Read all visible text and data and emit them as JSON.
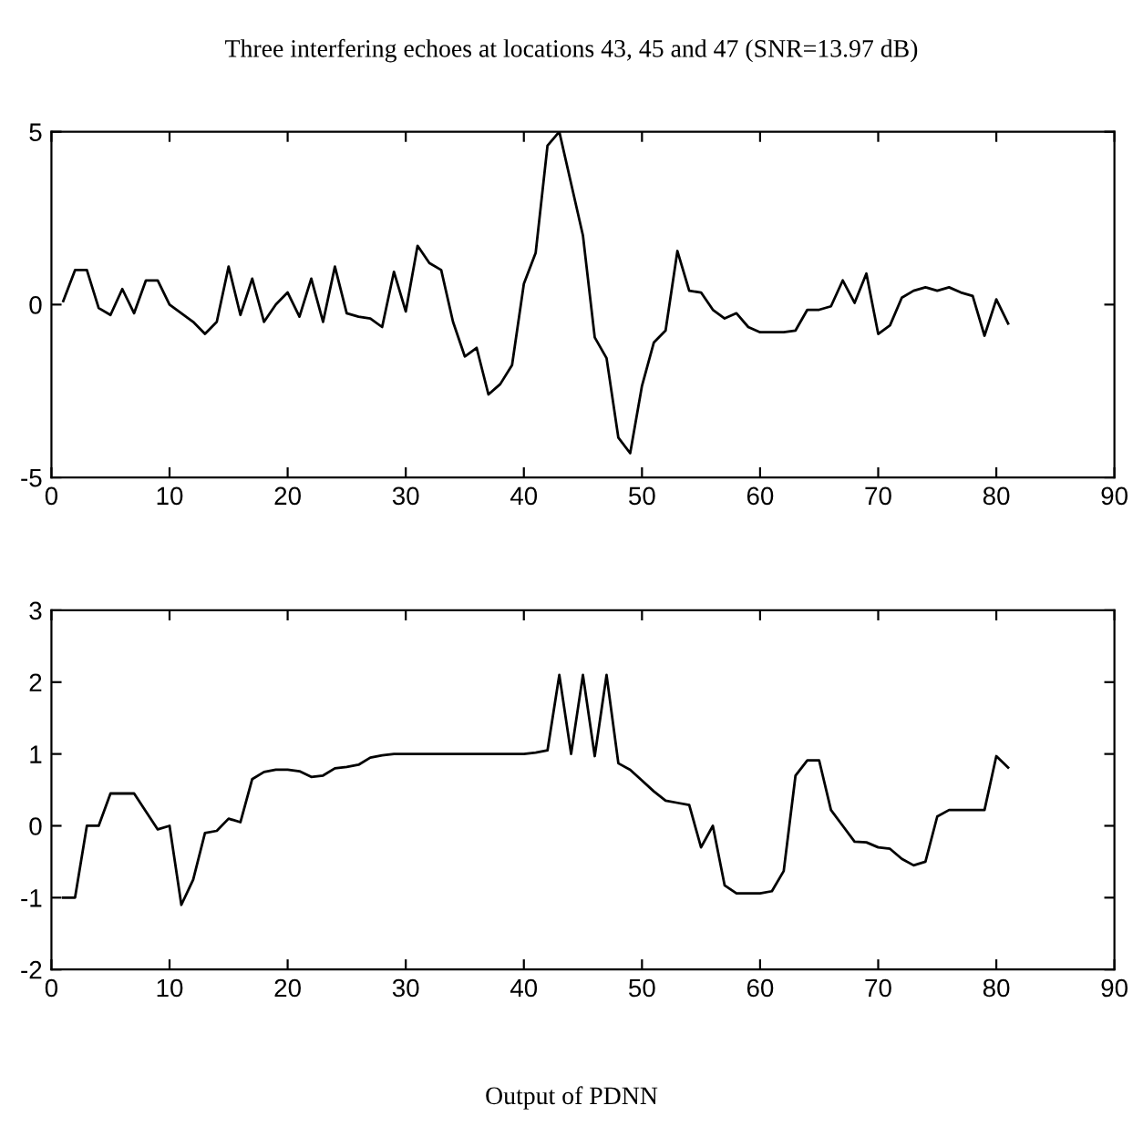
{
  "chart_data": [
    {
      "type": "line",
      "title": "Three interfering echoes at locations 43, 45 and 47 (SNR=13.97 dB)",
      "x": [
        1,
        2,
        3,
        4,
        5,
        6,
        7,
        8,
        9,
        10,
        11,
        12,
        13,
        14,
        15,
        16,
        17,
        18,
        19,
        20,
        21,
        22,
        23,
        24,
        25,
        26,
        27,
        28,
        29,
        30,
        31,
        32,
        33,
        34,
        35,
        36,
        37,
        38,
        39,
        40,
        41,
        42,
        43,
        44,
        45,
        46,
        47,
        48,
        49,
        50,
        51,
        52,
        53,
        54,
        55,
        56,
        57,
        58,
        59,
        60,
        61,
        62,
        63,
        64,
        65,
        66,
        67,
        68,
        69,
        70,
        71,
        72,
        73,
        74,
        75,
        76,
        77,
        78,
        79,
        80,
        81
      ],
      "series": [
        {
          "color": "#000000",
          "values": [
            0.1,
            1.0,
            1.0,
            -0.1,
            -0.3,
            0.45,
            -0.25,
            0.7,
            0.7,
            0,
            -0.25,
            -0.5,
            -0.85,
            -0.5,
            1.1,
            -0.3,
            0.75,
            -0.5,
            0,
            0.35,
            -0.35,
            0.75,
            -0.5,
            1.1,
            -0.25,
            -0.35,
            -0.4,
            -0.65,
            0.95,
            -0.2,
            1.7,
            1.2,
            1.0,
            -0.5,
            -1.5,
            -1.25,
            -2.6,
            -2.3,
            -1.75,
            0.6,
            1.5,
            4.6,
            5.0,
            3.5,
            2.0,
            -0.95,
            -1.55,
            -3.85,
            -4.3,
            -2.35,
            -1.1,
            -0.75,
            1.55,
            0.4,
            0.35,
            -0.15,
            -0.4,
            -0.25,
            -0.65,
            -0.8,
            -0.8,
            -0.8,
            -0.75,
            -0.15,
            -0.15,
            -0.05,
            0.7,
            0.05,
            0.9,
            -0.85,
            -0.6,
            0.2,
            0.4,
            0.5,
            0.4,
            0.5,
            0.35,
            0.25,
            -0.9,
            0.15,
            -0.55
          ]
        }
      ],
      "xlim": [
        0,
        90
      ],
      "xticks": [
        0,
        10,
        20,
        30,
        40,
        50,
        60,
        70,
        80,
        90
      ],
      "ylim": [
        -5,
        5
      ],
      "yticks": [
        -5,
        0,
        5
      ],
      "grid": false,
      "legend": false
    },
    {
      "type": "line",
      "annotations": [
        "Output of PDNN"
      ],
      "x": [
        1,
        2,
        3,
        4,
        5,
        6,
        7,
        8,
        9,
        10,
        11,
        12,
        13,
        14,
        15,
        16,
        17,
        18,
        19,
        20,
        21,
        22,
        23,
        24,
        25,
        26,
        27,
        28,
        29,
        30,
        31,
        32,
        33,
        34,
        35,
        36,
        37,
        38,
        39,
        40,
        41,
        42,
        43,
        44,
        45,
        46,
        47,
        48,
        49,
        50,
        51,
        52,
        53,
        54,
        55,
        56,
        57,
        58,
        59,
        60,
        61,
        62,
        63,
        64,
        65,
        66,
        67,
        68,
        69,
        70,
        71,
        72,
        73,
        74,
        75,
        76,
        77,
        78,
        79,
        80,
        81
      ],
      "series": [
        {
          "color": "#000000",
          "values": [
            -1.0,
            -1.0,
            0,
            0,
            0.45,
            0.45,
            0.45,
            0.2,
            -0.05,
            0,
            -1.1,
            -0.75,
            -0.1,
            -0.07,
            0.1,
            0.05,
            0.65,
            0.75,
            0.78,
            0.78,
            0.76,
            0.68,
            0.7,
            0.8,
            0.82,
            0.85,
            0.95,
            0.98,
            1.0,
            1.0,
            1.0,
            1.0,
            1.0,
            1.0,
            1.0,
            1.0,
            1.0,
            1.0,
            1.0,
            1.0,
            1.02,
            1.05,
            2.1,
            1.0,
            2.1,
            0.97,
            2.1,
            0.87,
            0.78,
            0.63,
            0.48,
            0.35,
            0.32,
            0.29,
            -0.3,
            0,
            -0.83,
            -0.94,
            -0.94,
            -0.94,
            -0.91,
            -0.63,
            0.7,
            0.91,
            0.91,
            0.22,
            0,
            -0.22,
            -0.23,
            -0.3,
            -0.32,
            -0.46,
            -0.55,
            -0.5,
            0.13,
            0.22,
            0.22,
            0.22,
            0.22,
            0.97,
            0.81
          ]
        }
      ],
      "xlim": [
        0,
        90
      ],
      "xticks": [
        0,
        10,
        20,
        30,
        40,
        50,
        60,
        70,
        80,
        90
      ],
      "ylim": [
        -2,
        3
      ],
      "yticks": [
        -2,
        -1,
        0,
        1,
        2,
        3
      ],
      "grid": false,
      "legend": false
    }
  ]
}
